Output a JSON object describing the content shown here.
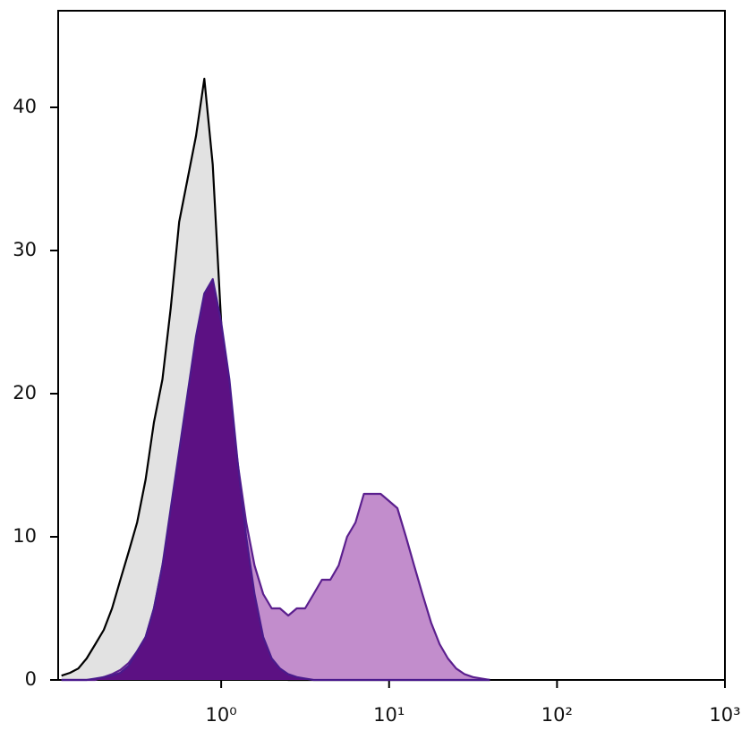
{
  "chart_data": {
    "type": "histogram-overlay",
    "xscale": "log",
    "xlim": [
      0.107,
      1000
    ],
    "xticks": [
      {
        "value": 1,
        "label": "10⁰"
      },
      {
        "value": 10,
        "label": "10¹"
      },
      {
        "value": 100,
        "label": "10²"
      },
      {
        "value": 1000,
        "label": "10³"
      }
    ],
    "ylim": [
      0,
      46.75
    ],
    "yticks": [
      0,
      10,
      20,
      30,
      40
    ],
    "x": [
      0.112,
      0.126,
      0.141,
      0.158,
      0.178,
      0.2,
      0.224,
      0.251,
      0.282,
      0.316,
      0.355,
      0.398,
      0.447,
      0.501,
      0.562,
      0.631,
      0.708,
      0.794,
      0.891,
      1,
      1.12,
      1.26,
      1.41,
      1.58,
      1.78,
      2,
      2.24,
      2.51,
      2.82,
      3.16,
      3.55,
      3.98,
      4.47,
      5.01,
      5.62,
      6.31,
      7.08,
      7.94,
      8.91,
      10,
      11.2,
      12.6,
      14.1,
      15.8,
      17.8,
      20,
      22.4,
      25.1,
      28.2,
      31.6,
      35.5,
      39.8
    ],
    "series": [
      {
        "color": "#e2e2e2",
        "stroke": "#000000",
        "values": [
          0.3,
          0.5,
          0.8,
          1.5,
          2.5,
          3.5,
          5,
          7,
          9,
          11,
          14,
          18,
          21,
          26,
          32,
          35,
          38,
          42,
          36,
          25,
          16,
          9,
          4,
          2,
          0.8,
          0.3,
          0.1,
          0,
          0,
          0,
          0,
          0,
          0,
          0,
          0,
          0,
          0,
          0,
          0,
          0,
          0,
          0,
          0,
          0,
          0,
          0,
          0,
          0,
          0,
          0,
          0,
          0
        ]
      },
      {
        "color": "#c28dcc",
        "stroke": "#5b1f8e",
        "values": [
          0,
          0,
          0,
          0,
          0,
          0.2,
          0.4,
          0.7,
          1.2,
          2,
          3,
          5,
          8,
          11,
          15,
          19,
          23,
          26,
          27,
          24,
          20,
          15,
          11,
          8,
          6,
          5,
          5,
          4.5,
          5,
          5,
          6,
          7,
          7,
          8,
          10,
          11,
          13,
          13,
          13,
          12.5,
          12,
          10,
          8,
          6,
          4,
          2.5,
          1.5,
          0.8,
          0.4,
          0.2,
          0.1,
          0
        ]
      },
      {
        "color": "#5c1183",
        "stroke": "#4a1a8c",
        "values": [
          0,
          0,
          0,
          0,
          0.1,
          0.2,
          0.3,
          0.5,
          1,
          2,
          3,
          5,
          8,
          12,
          16,
          20,
          24,
          27,
          28,
          25,
          21,
          15,
          10,
          6,
          3,
          1.5,
          0.8,
          0.4,
          0.2,
          0.1,
          0,
          0,
          0,
          0,
          0,
          0,
          0,
          0,
          0,
          0,
          0,
          0,
          0,
          0,
          0,
          0,
          0,
          0,
          0,
          0,
          0,
          0
        ]
      }
    ]
  }
}
